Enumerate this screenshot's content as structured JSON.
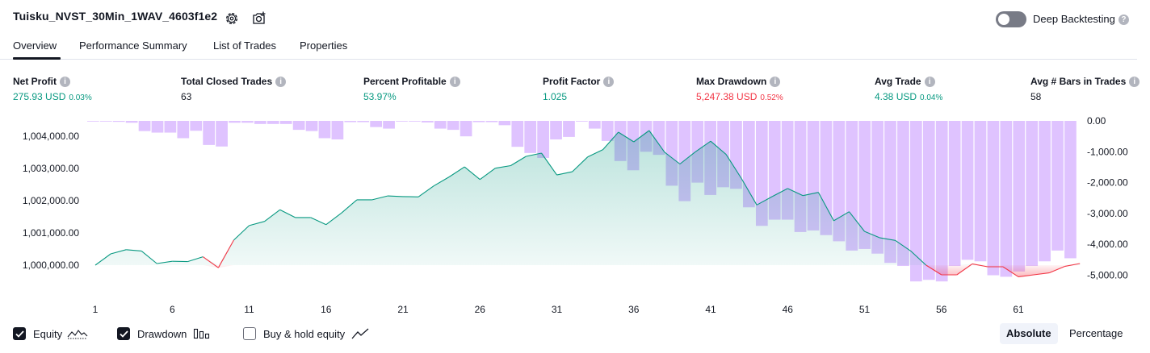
{
  "header": {
    "strategy_name": "Tuisku_NVST_30Min_1WAV_4603f1e2",
    "settings_icon": "gear-icon",
    "snapshot_icon": "camera-add-icon",
    "deep_backtesting_label": "Deep Backtesting",
    "deep_backtesting_enabled": false
  },
  "tabs": [
    {
      "label": "Overview",
      "active": true
    },
    {
      "label": "Performance Summary",
      "active": false
    },
    {
      "label": "List of Trades",
      "active": false
    },
    {
      "label": "Properties",
      "active": false
    }
  ],
  "stats": [
    {
      "label": "Net Profit",
      "value": "275.93 USD",
      "pct": "0.03%",
      "color": "#089981"
    },
    {
      "label": "Total Closed Trades",
      "value": "63",
      "pct": "",
      "color": "#131722"
    },
    {
      "label": "Percent Profitable",
      "value": "53.97%",
      "pct": "",
      "color": "#089981"
    },
    {
      "label": "Profit Factor",
      "value": "1.025",
      "pct": "",
      "color": "#089981"
    },
    {
      "label": "Max Drawdown",
      "value": "5,247.38 USD",
      "pct": "0.52%",
      "color": "#f23645"
    },
    {
      "label": "Avg Trade",
      "value": "4.38 USD",
      "pct": "0.04%",
      "color": "#089981"
    },
    {
      "label": "Avg # Bars in Trades",
      "value": "58",
      "pct": "",
      "color": "#131722"
    }
  ],
  "chart_data": {
    "type": "area",
    "x_ticks": [
      "1",
      "6",
      "11",
      "16",
      "21",
      "26",
      "31",
      "36",
      "41",
      "46",
      "51",
      "56",
      "61"
    ],
    "left_axis": {
      "ticks": [
        "1,000,000.00",
        "1,001,000.00",
        "1,002,000.00",
        "1,003,000.00",
        "1,004,000.00"
      ],
      "range": [
        999400,
        1004480
      ]
    },
    "right_axis": {
      "ticks": [
        "0.00",
        "-1,000.00",
        "-2,000.00",
        "-3,000.00",
        "-4,000.00",
        "-5,000.00"
      ],
      "range": [
        -5300,
        0
      ]
    },
    "series": [
      {
        "name": "Equity",
        "color": "#089981",
        "values": [
          1000000,
          1000350,
          1000480,
          1000440,
          1000050,
          1000120,
          1000110,
          1000260,
          999920,
          1000780,
          1001230,
          1001360,
          1001720,
          1001480,
          1001480,
          1001260,
          1001620,
          1002030,
          1002030,
          1002150,
          1002130,
          1002120,
          1002460,
          1002740,
          1003050,
          1002660,
          1003010,
          1003090,
          1003380,
          1003480,
          1002800,
          1002900,
          1003360,
          1003590,
          1004130,
          1003830,
          1004180,
          1003510,
          1003140,
          1003520,
          1003850,
          1003440,
          1002690,
          1001870,
          1002130,
          1002380,
          1002160,
          1002260,
          1001380,
          1001660,
          1001050,
          1000850,
          1000770,
          1000440,
          1000000,
          999700,
          999700,
          1000040,
          999950,
          999950,
          999640,
          999700,
          999760,
          999960,
          1000050
        ]
      },
      {
        "name": "Drawdown",
        "color": "#d1b3ff",
        "values": [
          0,
          0,
          -30,
          -60,
          -330,
          -380,
          -380,
          -560,
          -320,
          -780,
          -830,
          -60,
          -60,
          -100,
          -100,
          -100,
          -290,
          -330,
          -560,
          -600,
          -40,
          -40,
          -200,
          -250,
          -20,
          -20,
          -50,
          -250,
          -290,
          -500,
          -40,
          -40,
          -140,
          -840,
          -1040,
          -1200,
          -600,
          -520,
          0,
          -250,
          -650,
          -1300,
          -1600,
          -1000,
          -1100,
          -2100,
          -2600,
          -2000,
          -2400,
          -2150,
          -2200,
          -2800,
          -3400,
          -3200,
          -3200,
          -3600,
          -3550,
          -3700,
          -3900,
          -4200,
          -4150,
          -4300,
          -4600,
          -4700,
          -5200,
          -5150,
          -5200,
          -4700,
          -4500,
          -4550,
          -5000,
          -5050,
          -4880,
          -4700,
          -4550,
          -4200,
          -4450
        ]
      },
      {
        "name": "Buy & hold equity",
        "visible": false
      }
    ]
  },
  "legend": {
    "equity_label": "Equity",
    "equity_checked": true,
    "equity_icon": "equity-line-icon",
    "drawdown_label": "Drawdown",
    "drawdown_checked": true,
    "drawdown_icon": "drawdown-bars-icon",
    "buyhold_label": "Buy & hold equity",
    "buyhold_checked": false,
    "buyhold_icon": "buyhold-line-icon"
  },
  "mode": {
    "absolute_label": "Absolute",
    "percentage_label": "Percentage",
    "selected": "Absolute"
  }
}
